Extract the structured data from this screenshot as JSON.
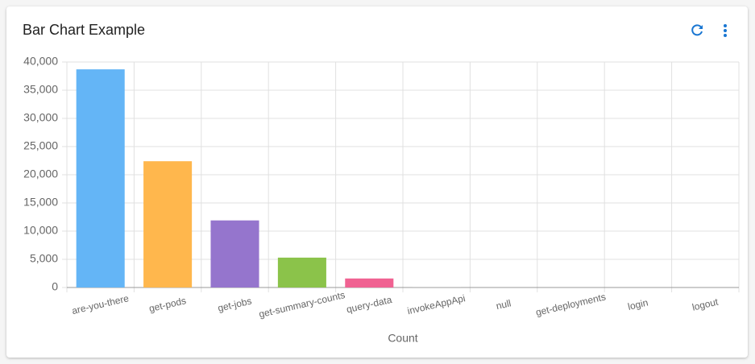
{
  "chart_data": {
    "type": "bar",
    "title": "Bar Chart Example",
    "x_label": "Count",
    "categories": [
      "are-you-there",
      "get-pods",
      "get-jobs",
      "get-summary-counts",
      "query-data",
      "invokeAppApi",
      "null",
      "get-deployments",
      "login",
      "logout"
    ],
    "values": [
      38700,
      22400,
      11900,
      5300,
      1600,
      100,
      0,
      0,
      0,
      0
    ],
    "colors": [
      "#64b5f6",
      "#ffb74d",
      "#9575cd",
      "#8bc34a",
      "#f06292",
      "#bdbdbd",
      "#4db6ac",
      "#ffd54f",
      "#e57373",
      "#7986cb"
    ],
    "ylim": [
      0,
      40000
    ],
    "yticks": [
      0,
      {
        "value": 5000,
        "label": "5,000"
      },
      {
        "value": 10000,
        "label": "10,000"
      },
      {
        "value": 15000,
        "label": "15,000"
      },
      {
        "value": 20000,
        "label": "20,000"
      },
      {
        "value": 25000,
        "label": "25,000"
      },
      {
        "value": 30000,
        "label": "30,000"
      },
      {
        "value": 35000,
        "label": "35,000"
      },
      {
        "value": 40000,
        "label": "40,000"
      }
    ],
    "grid": true
  }
}
